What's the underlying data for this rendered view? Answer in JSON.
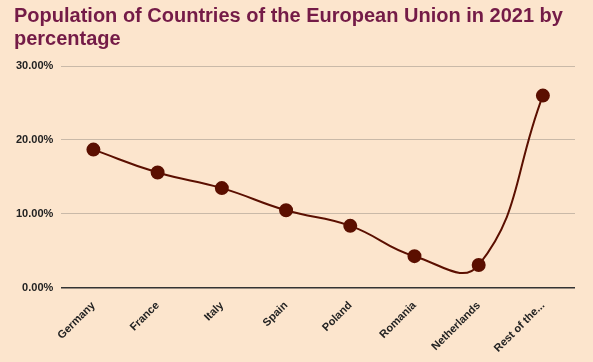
{
  "chart_data": {
    "type": "line",
    "title": "Population of Countries of the European Union in 2021 by percentage",
    "categories": [
      "Germany",
      "France",
      "Italy",
      "Spain",
      "Poland",
      "Romania",
      "Netherlands",
      "Rest of the..."
    ],
    "values": [
      18.7,
      15.6,
      13.5,
      10.5,
      8.4,
      4.3,
      3.1,
      26.0
    ],
    "color": "#5b0f00",
    "marker": "circle",
    "line_style": "solid",
    "ylim": [
      0,
      30
    ],
    "yticks": [
      {
        "value": 0,
        "label": "0.00%"
      },
      {
        "value": 10,
        "label": "10.00%"
      },
      {
        "value": 20,
        "label": "20.00%"
      },
      {
        "value": 30,
        "label": "30.00%"
      }
    ],
    "grid": true
  }
}
